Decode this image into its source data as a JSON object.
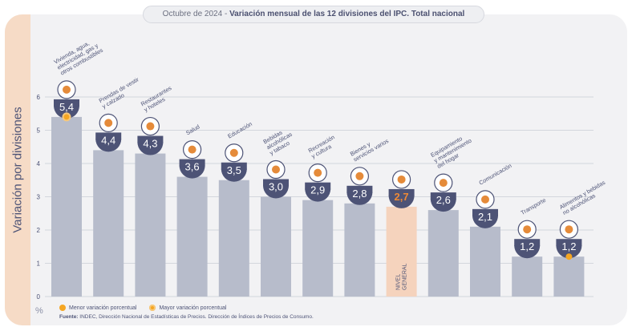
{
  "title": {
    "prefix": "Octubre de 2024 - ",
    "main": "Variación mensual de las 12 divisiones del IPC. Total nacional"
  },
  "chart_data": {
    "type": "bar",
    "ylabel": "Variación por divisiones",
    "unit": "%",
    "ylim": [
      0,
      6
    ],
    "yticks": [
      0,
      1,
      2,
      3,
      4,
      5,
      6
    ],
    "grid": true,
    "categories": [
      "Vivienda, agua, electricidad, gas y otros combustibles",
      "Prendas de vestir y calzado",
      "Restaurantes y hoteles",
      "Salud",
      "Educación",
      "Bebidas alcohólicas y tabaco",
      "Recreación y cultura",
      "Bienes y servicios varios",
      "Nivel general",
      "Equipamiento y mantenimiento del hogar",
      "Comunicación",
      "Transporte",
      "Alimentos y bebidas no alcohólicas"
    ],
    "values": [
      5.4,
      4.4,
      4.3,
      3.6,
      3.5,
      3.0,
      2.9,
      2.8,
      2.7,
      2.6,
      2.1,
      1.2,
      1.2
    ],
    "value_labels": [
      "5,4",
      "4,4",
      "4,3",
      "3,6",
      "3,5",
      "3,0",
      "2,9",
      "2,8",
      "2,7",
      "2,6",
      "2,1",
      "1,2",
      "1,2"
    ],
    "top_labels": [
      [
        "Vivienda, agua,",
        "electricidad, gas y",
        "otros combustibles"
      ],
      [
        "Prendas de vestir",
        "y calzado"
      ],
      [
        "Restaurantes",
        "y hoteles"
      ],
      [
        "Salud"
      ],
      [
        "Educación"
      ],
      [
        "Bebidas",
        "alcohólicas",
        "y tabaco"
      ],
      [
        "Recreación",
        "y cultura"
      ],
      [
        "Bienes y",
        "servicios varios"
      ],
      [],
      [
        "Equipamiento",
        "y mantenimiento",
        "del hogar"
      ],
      [
        "Comunicación"
      ],
      [
        "Transporte"
      ],
      [
        "Alimentos y bebidas",
        "no alcohólicas"
      ]
    ],
    "bar_inner_label": [
      "NIVEL",
      "GENERAL"
    ],
    "highlight_index": 8,
    "max_marker_index": 0,
    "min_marker_index": 12,
    "colors": {
      "bar": "#b7bccb",
      "highlight_bar": "#f5d3bd",
      "badge": "#4d5376",
      "badge_text": "#ffffff",
      "highlight_text": "#f08a34",
      "marker": "#f5a623",
      "grid": "#c9ccd6",
      "axis_text": "#4d5376"
    },
    "icons": [
      "house-utilities-icon",
      "clothing-icon",
      "cutlery-icon",
      "first-aid-icon",
      "book-icon",
      "bottle-glass-icon",
      "umbrella-icon",
      "scissors-comb-icon",
      "basket-icon",
      "appliance-icon",
      "smartphone-icon",
      "bus-icon",
      "food-icon"
    ]
  },
  "legend": [
    {
      "label": "Menor variación porcentual",
      "color": "#f5a623"
    },
    {
      "label": "Mayor variación porcentual",
      "color": "#f5a623"
    }
  ],
  "source": {
    "label": "Fuente:",
    "text": " INDEC, Dirección Nacional de Estadísticas de Precios. Dirección de Índices de Precios de Consumo."
  }
}
